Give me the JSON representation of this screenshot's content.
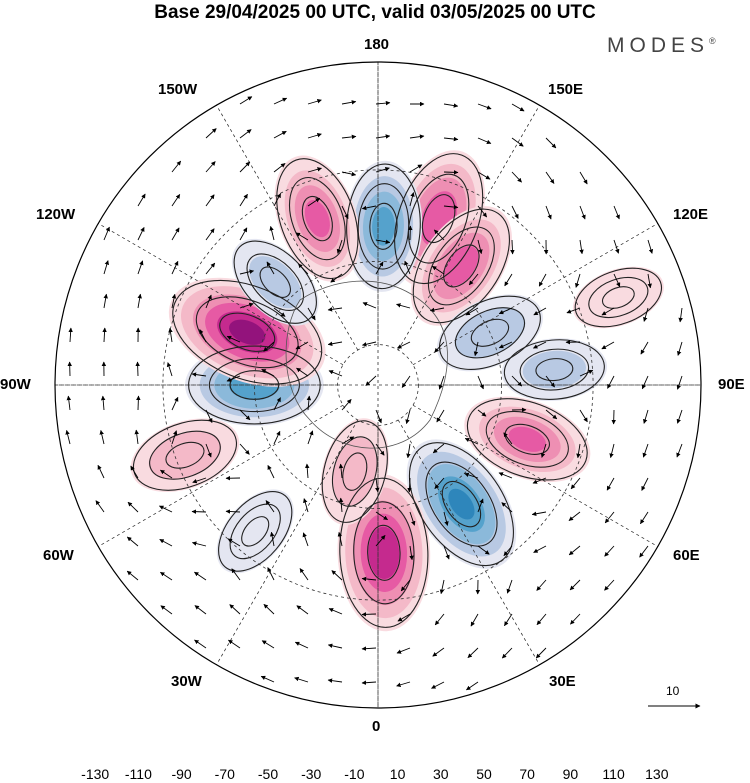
{
  "title": "Base 29/04/2025 00 UTC, valid 03/05/2025 00 UTC",
  "brand": "MODES",
  "brand_mark": "®",
  "longitude_labels": {
    "lon_180": "180",
    "lon_150w": "150W",
    "lon_150e": "150E",
    "lon_120w": "120W",
    "lon_120e": "120E",
    "lon_90w": "90W",
    "lon_90e": "90E",
    "lon_60w": "60W",
    "lon_60e": "60E",
    "lon_30w": "30W",
    "lon_30e": "30E",
    "lon_0": "0"
  },
  "reference_vector": {
    "label": "10",
    "magnitude": 10
  },
  "colorbar": {
    "levels": [
      -130,
      -110,
      -90,
      -70,
      -50,
      -30,
      -10,
      10,
      30,
      50,
      70,
      90,
      110,
      130
    ],
    "tick_labels": [
      "-130",
      "-110",
      "-90",
      "-70",
      "-50",
      "-30",
      "-10",
      "10",
      "30",
      "50",
      "70",
      "90",
      "110",
      "130"
    ],
    "colors": [
      "#0e4a6e",
      "#1a6a98",
      "#2e86bb",
      "#55a2cc",
      "#8bb9da",
      "#b8c9e3",
      "#e4e6f1",
      "#ffffff",
      "#f9dbe0",
      "#f4b9c8",
      "#ee8fb3",
      "#e65aa4",
      "#c52a8e",
      "#93137c",
      "#5e0a6b"
    ]
  },
  "map_data": {
    "projection": "north-polar-stereographic",
    "center": "North Pole",
    "fields": [
      {
        "lon": 160,
        "lat": 48,
        "value": 85
      },
      {
        "lon": 178,
        "lat": 52,
        "value": -70
      },
      {
        "lon": 145,
        "lat": 55,
        "value": 75
      },
      {
        "lon": 115,
        "lat": 60,
        "value": -45
      },
      {
        "lon": 95,
        "lat": 48,
        "value": -35
      },
      {
        "lon": 70,
        "lat": 52,
        "value": 70
      },
      {
        "lon": 35,
        "lat": 55,
        "value": -90
      },
      {
        "lon": 2,
        "lat": 50,
        "value": 105
      },
      {
        "lon": -15,
        "lat": 68,
        "value": 40
      },
      {
        "lon": -40,
        "lat": 45,
        "value": -25
      },
      {
        "lon": -70,
        "lat": 42,
        "value": 45
      },
      {
        "lon": -90,
        "lat": 60,
        "value": -80
      },
      {
        "lon": -112,
        "lat": 56,
        "value": 115
      },
      {
        "lon": -135,
        "lat": 55,
        "value": -35
      },
      {
        "lon": -160,
        "lat": 48,
        "value": 70
      },
      {
        "lon": 110,
        "lat": 32,
        "value": 20
      }
    ]
  }
}
